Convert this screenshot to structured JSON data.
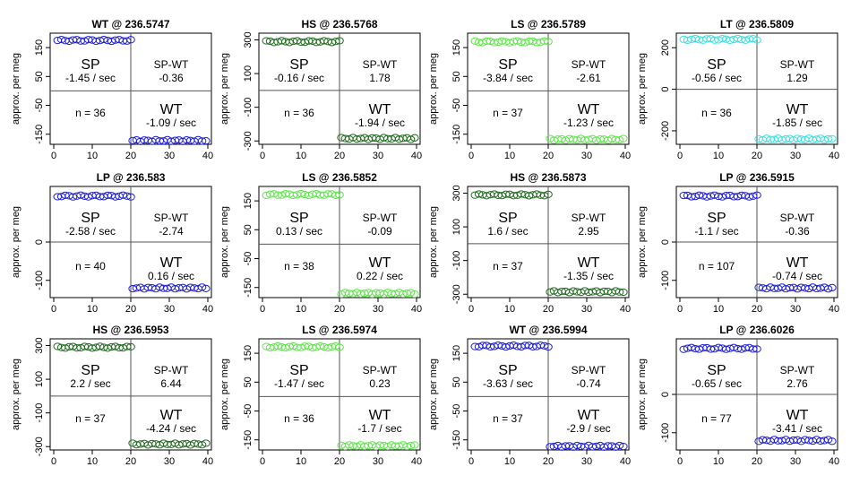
{
  "chart_data": [
    {
      "type": "scatter",
      "title": "WT @ 236.5747",
      "ylabel": "approx. per meg",
      "xlim": [
        0,
        40
      ],
      "xticks": [
        0,
        10,
        20,
        30,
        40
      ],
      "ylim": [
        -185,
        200
      ],
      "yticks": [
        150,
        50,
        -50,
        -150
      ],
      "top_value": 175,
      "bottom_value": -172,
      "color": "#1f1fd8",
      "sp_label": "SP",
      "sp_rate": "-1.45 / sec",
      "spwt_label": "SP-WT",
      "spwt_value": "-0.36",
      "n_text": "n = 36",
      "wt_label": "WT",
      "wt_rate": "-1.09 / sec"
    },
    {
      "type": "scatter",
      "title": "HS @ 236.5768",
      "ylabel": "approx. per meg",
      "xlim": [
        0,
        40
      ],
      "xticks": [
        0,
        10,
        20,
        30,
        40
      ],
      "ylim": [
        -320,
        340
      ],
      "yticks": [
        300,
        100,
        -100,
        -300
      ],
      "top_value": 290,
      "bottom_value": -285,
      "color": "#1f6b1f",
      "sp_label": "SP",
      "sp_rate": "-0.16 / sec",
      "spwt_label": "SP-WT",
      "spwt_value": "1.78",
      "n_text": "n = 36",
      "wt_label": "WT",
      "wt_rate": "-1.94 / sec"
    },
    {
      "type": "scatter",
      "title": "LS @ 236.5789",
      "ylabel": "approx. per meg",
      "xlim": [
        0,
        40
      ],
      "xticks": [
        0,
        10,
        20,
        30,
        40
      ],
      "ylim": [
        -185,
        200
      ],
      "yticks": [
        150,
        50,
        -50,
        -150
      ],
      "top_value": 170,
      "bottom_value": -168,
      "color": "#5ee84a",
      "sp_label": "SP",
      "sp_rate": "-3.84 / sec",
      "spwt_label": "SP-WT",
      "spwt_value": "-2.61",
      "n_text": "n = 37",
      "wt_label": "WT",
      "wt_rate": "-1.23 / sec"
    },
    {
      "type": "scatter",
      "title": "LT @ 236.5809",
      "ylabel": "approx. per meg",
      "xlim": [
        0,
        40
      ],
      "xticks": [
        0,
        10,
        20,
        30,
        40
      ],
      "ylim": [
        -265,
        270
      ],
      "yticks": [
        200,
        0,
        -200
      ],
      "top_value": 240,
      "bottom_value": -240,
      "color": "#3fe0e0",
      "sp_label": "SP",
      "sp_rate": "-0.56 / sec",
      "spwt_label": "SP-WT",
      "spwt_value": "1.29",
      "n_text": "n = 36",
      "wt_label": "WT",
      "wt_rate": "-1.85 / sec"
    },
    {
      "type": "scatter",
      "title": "LP @ 236.583",
      "ylabel": "approx. per meg",
      "xlim": [
        0,
        40
      ],
      "xticks": [
        0,
        10,
        20,
        30,
        40
      ],
      "ylim": [
        -145,
        145
      ],
      "yticks": [
        0,
        -100
      ],
      "top_value": 120,
      "bottom_value": -120,
      "color": "#1f1fd8",
      "sp_label": "SP",
      "sp_rate": "-2.58 / sec",
      "spwt_label": "SP-WT",
      "spwt_value": "-2.74",
      "n_text": "n = 40",
      "wt_label": "WT",
      "wt_rate": "0.16 / sec"
    },
    {
      "type": "scatter",
      "title": "LS @ 236.5852",
      "ylabel": "approx. per meg",
      "xlim": [
        0,
        40
      ],
      "xticks": [
        0,
        10,
        20,
        30,
        40
      ],
      "ylim": [
        -185,
        200
      ],
      "yticks": [
        150,
        50,
        -50,
        -150
      ],
      "top_value": 172,
      "bottom_value": -170,
      "color": "#5ee84a",
      "sp_label": "SP",
      "sp_rate": "0.13 / sec",
      "spwt_label": "SP-WT",
      "spwt_value": "-0.09",
      "n_text": "n = 38",
      "wt_label": "WT",
      "wt_rate": "0.22 / sec"
    },
    {
      "type": "scatter",
      "title": "HS @ 236.5873",
      "ylabel": "approx. per meg",
      "xlim": [
        0,
        40
      ],
      "xticks": [
        0,
        10,
        20,
        30,
        40
      ],
      "ylim": [
        -320,
        340
      ],
      "yticks": [
        300,
        100,
        -100,
        -300
      ],
      "top_value": 290,
      "bottom_value": -285,
      "color": "#1f6b1f",
      "sp_label": "SP",
      "sp_rate": "1.6 / sec",
      "spwt_label": "SP-WT",
      "spwt_value": "2.95",
      "n_text": "n = 37",
      "wt_label": "WT",
      "wt_rate": "-1.35 / sec"
    },
    {
      "type": "scatter",
      "title": "LP @ 236.5915",
      "ylabel": "approx. per meg",
      "xlim": [
        0,
        40
      ],
      "xticks": [
        0,
        10,
        20,
        30,
        40
      ],
      "ylim": [
        -145,
        145
      ],
      "yticks": [
        0,
        -100
      ],
      "top_value": 120,
      "bottom_value": -120,
      "color": "#1f1fd8",
      "sp_label": "SP",
      "sp_rate": "-1.1 / sec",
      "spwt_label": "SP-WT",
      "spwt_value": "-0.36",
      "n_text": "n = 107",
      "wt_label": "WT",
      "wt_rate": "-0.74 / sec"
    },
    {
      "type": "scatter",
      "title": "HS @ 236.5953",
      "ylabel": "approx. per meg",
      "xlim": [
        0,
        40
      ],
      "xticks": [
        0,
        10,
        20,
        30,
        40
      ],
      "ylim": [
        -320,
        340
      ],
      "yticks": [
        300,
        100,
        -100,
        -300
      ],
      "top_value": 290,
      "bottom_value": -285,
      "color": "#1f6b1f",
      "sp_label": "SP",
      "sp_rate": "2.2 / sec",
      "spwt_label": "SP-WT",
      "spwt_value": "6.44",
      "n_text": "n = 37",
      "wt_label": "WT",
      "wt_rate": "-4.24 / sec"
    },
    {
      "type": "scatter",
      "title": "LS @ 236.5974",
      "ylabel": "approx. per meg",
      "xlim": [
        0,
        40
      ],
      "xticks": [
        0,
        10,
        20,
        30,
        40
      ],
      "ylim": [
        -185,
        200
      ],
      "yticks": [
        150,
        50,
        -50,
        -150
      ],
      "top_value": 172,
      "bottom_value": -170,
      "color": "#5ee84a",
      "sp_label": "SP",
      "sp_rate": "-1.47 / sec",
      "spwt_label": "SP-WT",
      "spwt_value": "0.23",
      "n_text": "n = 36",
      "wt_label": "WT",
      "wt_rate": "-1.7 / sec"
    },
    {
      "type": "scatter",
      "title": "WT @ 236.5994",
      "ylabel": "approx. per meg",
      "xlim": [
        0,
        40
      ],
      "xticks": [
        0,
        10,
        20,
        30,
        40
      ],
      "ylim": [
        -185,
        200
      ],
      "yticks": [
        150,
        50,
        -50,
        -150
      ],
      "top_value": 175,
      "bottom_value": -172,
      "color": "#1f1fd8",
      "sp_label": "SP",
      "sp_rate": "-3.63 / sec",
      "spwt_label": "SP-WT",
      "spwt_value": "-0.74",
      "n_text": "n = 37",
      "wt_label": "WT",
      "wt_rate": "-2.9 / sec"
    },
    {
      "type": "scatter",
      "title": "LP @ 236.6026",
      "ylabel": "approx. per meg",
      "xlim": [
        0,
        40
      ],
      "xticks": [
        0,
        10,
        20,
        30,
        40
      ],
      "ylim": [
        -145,
        145
      ],
      "yticks": [
        0,
        -100
      ],
      "top_value": 120,
      "bottom_value": -120,
      "color": "#1f1fd8",
      "sp_label": "SP",
      "sp_rate": "-0.65 / sec",
      "spwt_label": "SP-WT",
      "spwt_value": "2.76",
      "n_text": "n = 77",
      "wt_label": "WT",
      "wt_rate": "-3.41 / sec"
    }
  ]
}
